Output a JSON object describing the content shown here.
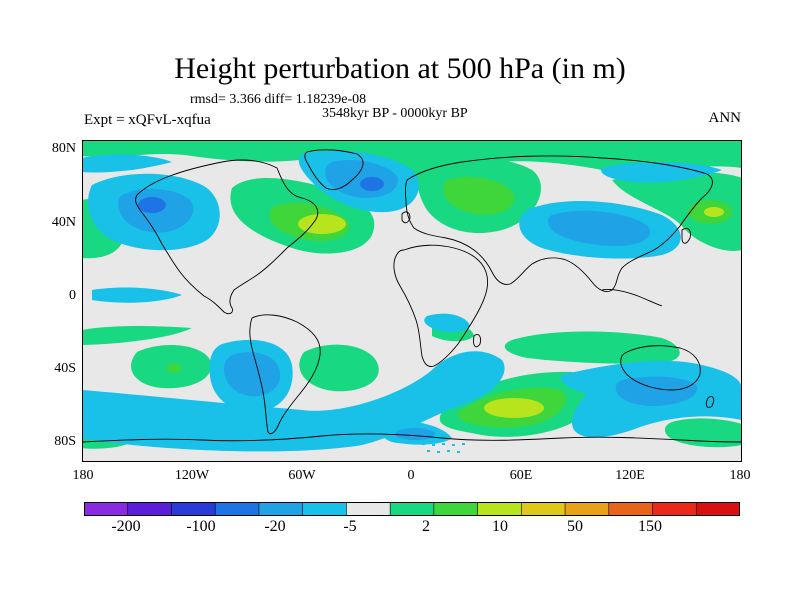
{
  "title": "Height perturbation at 500 hPa (in m)",
  "stats": "rmsd= 3.366  diff= 1.18239e-08",
  "period": "3548kyr BP - 0000kyr BP",
  "experiment": "Expt = xQFvL-xqfua",
  "season": "ANN",
  "lat_labels": [
    "80N",
    "40N",
    "0",
    "40S",
    "80S"
  ],
  "lon_labels": [
    "180",
    "120W",
    "60W",
    "0",
    "60E",
    "120E",
    "180"
  ],
  "colorbar": {
    "labels": [
      "-200",
      "-100",
      "-20",
      "-5",
      "2",
      "10",
      "50",
      "150"
    ],
    "colors": [
      "#8a2be2",
      "#5a1fd6",
      "#2b3bd8",
      "#1e74e6",
      "#20a2e6",
      "#19c0e8",
      "#e8e8e8",
      "#19d882",
      "#3ed63a",
      "#b8e41e",
      "#e0c81a",
      "#e8a21a",
      "#e8641a",
      "#e82a1a",
      "#d81010"
    ]
  },
  "field_colors": {
    "neutral": "#e8e8e8",
    "neg_light": "#19c0e8",
    "neg_mid": "#20a2e6",
    "pos_light": "#19d882",
    "pos_mid": "#3ed63a",
    "pos_strong": "#b8e41e"
  }
}
